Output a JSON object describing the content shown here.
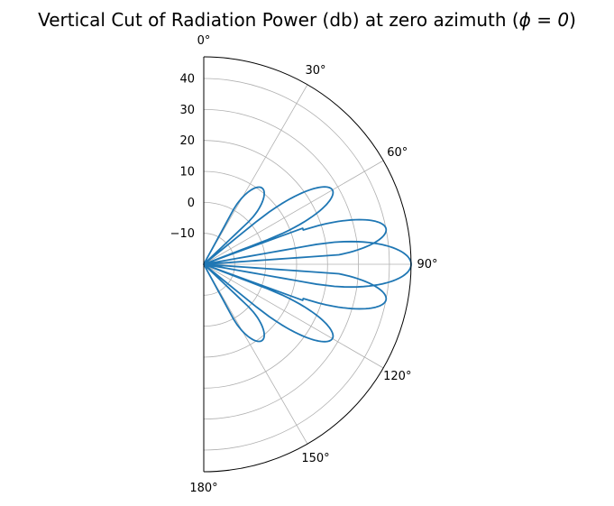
{
  "chart_data": {
    "type": "line",
    "projection": "polar",
    "title": "Vertical Cut of Radiation Power (db) at zero azimuth (",
    "title_math": "ϕ = 0",
    "title_close": ")",
    "theta_unit": "degrees",
    "theta_range": [
      0,
      180
    ],
    "theta_zero_location": "top",
    "theta_direction": "clockwise",
    "theta_ticks": [
      0,
      30,
      60,
      90,
      120,
      150,
      180
    ],
    "theta_tick_labels": [
      "0°",
      "30°",
      "60°",
      "90°",
      "120°",
      "150°",
      "180°"
    ],
    "r_range": [
      -20,
      47
    ],
    "r_ticks": [
      -10,
      0,
      10,
      20,
      30,
      40
    ],
    "r_tick_labels": [
      "−10",
      "0",
      "10",
      "20",
      "30",
      "40"
    ],
    "grid": true,
    "line_color": "#1f77b4",
    "grid_color": "#b0b0b0",
    "series": [
      {
        "lobes": [
          {
            "theta_range": [
              28.5,
              46.5
            ],
            "peak_theta": 37.5,
            "peak_r": 11,
            "edge_r": 0
          },
          {
            "theta_range": [
              51,
              69
            ],
            "peak_theta": 60,
            "peak_r": 28,
            "edge_r": 2
          },
          {
            "theta_range": [
              70,
              86
            ],
            "peak_theta": 79,
            "peak_r": 40,
            "edge_r": 14
          },
          {
            "theta_range": [
              80,
              100
            ],
            "peak_theta": 90,
            "peak_r": 47,
            "edge_r": 17
          },
          {
            "theta_range": [
              94,
              110
            ],
            "peak_theta": 101,
            "peak_r": 40,
            "edge_r": 14
          },
          {
            "theta_range": [
              111,
              129
            ],
            "peak_theta": 120,
            "peak_r": 28,
            "edge_r": 2
          },
          {
            "theta_range": [
              133.5,
              151.5
            ],
            "peak_theta": 142.5,
            "peak_r": 11,
            "edge_r": 0
          }
        ]
      }
    ]
  }
}
